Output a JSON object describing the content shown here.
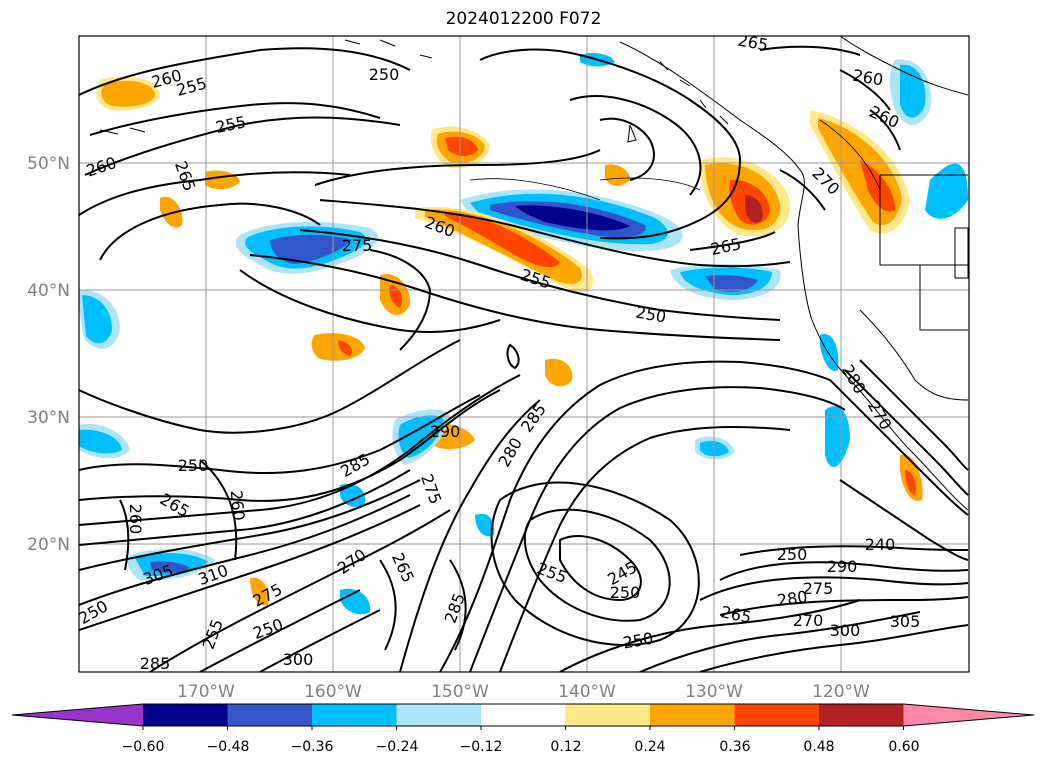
{
  "title": "2024012200 F072",
  "map": {
    "lat_labels": [
      "50°N",
      "40°N",
      "30°N",
      "20°N"
    ],
    "lon_labels": [
      "170°W",
      "160°W",
      "150°W",
      "140°W",
      "130°W",
      "120°W"
    ],
    "contour_labels": [
      "260",
      "255",
      "250",
      "265",
      "255",
      "260",
      "265",
      "260",
      "275",
      "260",
      "255",
      "250",
      "265",
      "260",
      "270",
      "265",
      "260",
      "250",
      "290",
      "285",
      "280",
      "275",
      "285",
      "265",
      "270",
      "275",
      "260",
      "265",
      "255",
      "245",
      "250",
      "250",
      "265",
      "250",
      "240",
      "290",
      "280",
      "275",
      "270",
      "305",
      "300",
      "285",
      "250",
      "255",
      "270",
      "250",
      "285",
      "300",
      "310",
      "305",
      "280",
      "290"
    ]
  },
  "colorbar": {
    "tick_labels": [
      "−0.60",
      "−0.48",
      "−0.36",
      "−0.24",
      "−0.12",
      "0.12",
      "0.24",
      "0.36",
      "0.48",
      "0.60"
    ],
    "colors": [
      "#9933cc",
      "#00008b",
      "#3355cc",
      "#00bfff",
      "#aee4f8",
      "#ffffff",
      "#ffe88a",
      "#ffa500",
      "#ff4500",
      "#b22222",
      "#ff88aa"
    ]
  }
}
